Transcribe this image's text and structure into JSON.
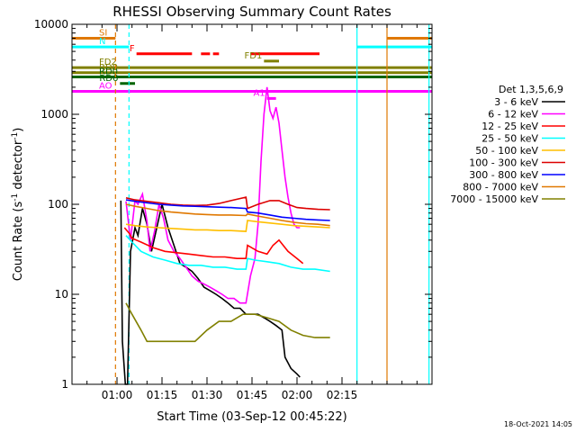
{
  "chart_data": {
    "type": "line",
    "title": "RHESSI Observing Summary Count Rates",
    "xlabel": "Start Time (03-Sep-12 00:45:22)",
    "ylabel_main": "Count Rate (s",
    "ylabel_sup1": "-1",
    "ylabel_mid": " detector",
    "ylabel_sup2": "-1",
    "ylabel_end": ")",
    "yscale": "log",
    "ylim": [
      1,
      10000
    ],
    "xlim_minutes": [
      -15,
      105
    ],
    "x_ticks": [
      {
        "m": 0,
        "label": "01:00"
      },
      {
        "m": 15,
        "label": "01:15"
      },
      {
        "m": 30,
        "label": "01:30"
      },
      {
        "m": 45,
        "label": "01:45"
      },
      {
        "m": 60,
        "label": "02:00"
      },
      {
        "m": 75,
        "label": "02:15"
      }
    ],
    "y_ticks": [
      {
        "v": 1,
        "label": "1"
      },
      {
        "v": 10,
        "label": "10"
      },
      {
        "v": 100,
        "label": "100"
      },
      {
        "v": 1000,
        "label": "1000"
      },
      {
        "v": 10000,
        "label": "10000"
      }
    ],
    "legend_title": "Det 1,3,5,6,9",
    "legend_position": "right",
    "series": [
      {
        "name": "3 - 6 keV",
        "color": "#000000",
        "points": [
          [
            1.3,
            110
          ],
          [
            1.8,
            3
          ],
          [
            2.8,
            1
          ],
          [
            3.5,
            1
          ],
          [
            4.5,
            30
          ],
          [
            6,
            55
          ],
          [
            7,
            45
          ],
          [
            8.5,
            90
          ],
          [
            10,
            60
          ],
          [
            11.5,
            30
          ],
          [
            13,
            50
          ],
          [
            15,
            100
          ],
          [
            17,
            55
          ],
          [
            19,
            35
          ],
          [
            21,
            22
          ],
          [
            23,
            20
          ],
          [
            25,
            18
          ],
          [
            27,
            15
          ],
          [
            29,
            12
          ],
          [
            31,
            11
          ],
          [
            33,
            10
          ],
          [
            35,
            9
          ],
          [
            37,
            8
          ],
          [
            39,
            7
          ],
          [
            41,
            7
          ],
          [
            43,
            6
          ],
          [
            45,
            6
          ],
          [
            47,
            6
          ],
          [
            49,
            5.5
          ],
          [
            51,
            5
          ],
          [
            53,
            4.5
          ],
          [
            55,
            4
          ],
          [
            56,
            2
          ],
          [
            58,
            1.5
          ],
          [
            60,
            1.3
          ],
          [
            61,
            1.2
          ]
        ]
      },
      {
        "name": "6 - 12 keV",
        "color": "#ff00ff",
        "points": [
          [
            3,
            108
          ],
          [
            4.5,
            40
          ],
          [
            6,
            110
          ],
          [
            7,
            100
          ],
          [
            8.5,
            130
          ],
          [
            10,
            65
          ],
          [
            11,
            30
          ],
          [
            12.5,
            50
          ],
          [
            14,
            100
          ],
          [
            15.5,
            70
          ],
          [
            17,
            40
          ],
          [
            19,
            30
          ],
          [
            21,
            25
          ],
          [
            23,
            20
          ],
          [
            25,
            16
          ],
          [
            27,
            14
          ],
          [
            29,
            13
          ],
          [
            31,
            12
          ],
          [
            33,
            11
          ],
          [
            35,
            10
          ],
          [
            37,
            9
          ],
          [
            39,
            9
          ],
          [
            41,
            8
          ],
          [
            43,
            8
          ],
          [
            44.5,
            16
          ],
          [
            46,
            25
          ],
          [
            47,
            60
          ],
          [
            48,
            300
          ],
          [
            49,
            1000
          ],
          [
            50,
            2000
          ],
          [
            51,
            1100
          ],
          [
            52,
            900
          ],
          [
            53,
            1200
          ],
          [
            54,
            800
          ],
          [
            55,
            400
          ],
          [
            56,
            200
          ],
          [
            57,
            120
          ],
          [
            58,
            80
          ],
          [
            59,
            60
          ],
          [
            60,
            55
          ],
          [
            61,
            55
          ]
        ]
      },
      {
        "name": "12 - 25 keV",
        "color": "#ff0000",
        "points": [
          [
            2.5,
            55
          ],
          [
            4,
            48
          ],
          [
            5,
            42
          ],
          [
            8,
            38
          ],
          [
            12,
            33
          ],
          [
            16,
            30
          ],
          [
            20,
            29
          ],
          [
            24,
            28
          ],
          [
            28,
            27
          ],
          [
            32,
            26
          ],
          [
            36,
            26
          ],
          [
            40,
            25
          ],
          [
            43,
            25
          ],
          [
            43.5,
            35
          ],
          [
            47,
            30
          ],
          [
            50,
            28
          ],
          [
            52,
            35
          ],
          [
            54,
            40
          ],
          [
            57,
            30
          ],
          [
            60,
            25
          ],
          [
            62,
            22
          ]
        ]
      },
      {
        "name": "25 - 50 keV",
        "color": "#00ffff",
        "points": [
          [
            3,
            45
          ],
          [
            5,
            38
          ],
          [
            8,
            30
          ],
          [
            12,
            26
          ],
          [
            16,
            24
          ],
          [
            20,
            22
          ],
          [
            24,
            21
          ],
          [
            28,
            21
          ],
          [
            32,
            20
          ],
          [
            36,
            20
          ],
          [
            40,
            19
          ],
          [
            43,
            19
          ],
          [
            43.5,
            25
          ],
          [
            46,
            24
          ],
          [
            50,
            23
          ],
          [
            54,
            22
          ],
          [
            58,
            20
          ],
          [
            62,
            19
          ],
          [
            66,
            19
          ],
          [
            71,
            18
          ]
        ]
      },
      {
        "name": "50 - 100 keV",
        "color": "#ffbf00",
        "points": [
          [
            3,
            60
          ],
          [
            6,
            58
          ],
          [
            10,
            56
          ],
          [
            14,
            55
          ],
          [
            18,
            54
          ],
          [
            22,
            53
          ],
          [
            26,
            52
          ],
          [
            30,
            52
          ],
          [
            34,
            51
          ],
          [
            38,
            51
          ],
          [
            43,
            50
          ],
          [
            43.5,
            66
          ],
          [
            47,
            64
          ],
          [
            51,
            62
          ],
          [
            55,
            60
          ],
          [
            59,
            58
          ],
          [
            63,
            57
          ],
          [
            67,
            56
          ],
          [
            71,
            55
          ]
        ]
      },
      {
        "name": "100 - 300 keV",
        "color": "#dd0000",
        "points": [
          [
            3,
            118
          ],
          [
            6,
            112
          ],
          [
            10,
            108
          ],
          [
            14,
            104
          ],
          [
            18,
            100
          ],
          [
            22,
            98
          ],
          [
            26,
            97
          ],
          [
            30,
            98
          ],
          [
            34,
            102
          ],
          [
            38,
            110
          ],
          [
            43,
            120
          ],
          [
            43.5,
            90
          ],
          [
            47,
            100
          ],
          [
            51,
            110
          ],
          [
            54,
            110
          ],
          [
            57,
            100
          ],
          [
            60,
            92
          ],
          [
            63,
            90
          ],
          [
            67,
            88
          ],
          [
            71,
            87
          ]
        ]
      },
      {
        "name": "300 - 800 keV",
        "color": "#0000ff",
        "points": [
          [
            3,
            112
          ],
          [
            6,
            108
          ],
          [
            10,
            104
          ],
          [
            14,
            100
          ],
          [
            18,
            98
          ],
          [
            22,
            96
          ],
          [
            26,
            95
          ],
          [
            30,
            94
          ],
          [
            34,
            93
          ],
          [
            38,
            92
          ],
          [
            43,
            90
          ],
          [
            43.5,
            82
          ],
          [
            47,
            80
          ],
          [
            51,
            76
          ],
          [
            55,
            72
          ],
          [
            59,
            70
          ],
          [
            63,
            68
          ],
          [
            67,
            67
          ],
          [
            71,
            66
          ]
        ]
      },
      {
        "name": "800 - 7000 keV",
        "color": "#e07800",
        "points": [
          [
            3,
            100
          ],
          [
            6,
            95
          ],
          [
            10,
            90
          ],
          [
            14,
            85
          ],
          [
            18,
            82
          ],
          [
            22,
            80
          ],
          [
            26,
            78
          ],
          [
            30,
            77
          ],
          [
            34,
            76
          ],
          [
            38,
            76
          ],
          [
            43,
            75
          ],
          [
            43.5,
            78
          ],
          [
            47,
            74
          ],
          [
            51,
            70
          ],
          [
            55,
            66
          ],
          [
            59,
            63
          ],
          [
            63,
            61
          ],
          [
            67,
            60
          ],
          [
            71,
            58
          ]
        ]
      },
      {
        "name": "7000 - 15000 keV",
        "color": "#808000",
        "points": [
          [
            3,
            8
          ],
          [
            5,
            6
          ],
          [
            8,
            4
          ],
          [
            10,
            3
          ],
          [
            14,
            3
          ],
          [
            18,
            3
          ],
          [
            22,
            3
          ],
          [
            26,
            3
          ],
          [
            30,
            4
          ],
          [
            34,
            5
          ],
          [
            38,
            5
          ],
          [
            42,
            6
          ],
          [
            43,
            6
          ],
          [
            46,
            6
          ],
          [
            50,
            5.5
          ],
          [
            54,
            5
          ],
          [
            58,
            4
          ],
          [
            62,
            3.5
          ],
          [
            66,
            3.3
          ],
          [
            71,
            3.3
          ]
        ]
      }
    ],
    "flag_bars": [
      {
        "label": "SI",
        "color": "#e07800",
        "y": 7000,
        "segments": [
          [
            -15,
            -0.5
          ],
          [
            90,
            105
          ]
        ]
      },
      {
        "label": "N",
        "color": "#00ffff",
        "y": 5600,
        "segments": [
          [
            -15,
            4
          ],
          [
            80,
            105
          ]
        ]
      },
      {
        "label": "F",
        "color": "#ff0000",
        "y": 4700,
        "segments": [
          [
            6.5,
            25
          ],
          [
            28,
            31
          ],
          [
            32,
            34
          ],
          [
            44.5,
            67.5
          ]
        ]
      },
      {
        "label": "FD1",
        "color": "#808000",
        "y": 3900,
        "segments": [
          [
            49,
            54
          ]
        ]
      },
      {
        "label": "FD2",
        "color": "#808000",
        "y": 3300,
        "segments": [
          [
            -15,
            105
          ]
        ]
      },
      {
        "label": "RD0",
        "color": "#808000",
        "y": 2900,
        "segments": [
          [
            -15,
            105
          ]
        ]
      },
      {
        "label": "RD0",
        "color": "#006400",
        "y": 2600,
        "segments": [
          [
            -15,
            105
          ]
        ]
      },
      {
        "label": "RD6",
        "color": "#006400",
        "y": 2200,
        "segments": [
          [
            1,
            6
          ]
        ]
      },
      {
        "label": "AO",
        "color": "#ff00ff",
        "y": 1800,
        "segments": [
          [
            -15,
            105
          ]
        ]
      },
      {
        "label": "A1",
        "color": "#ff00ff",
        "y": 1500,
        "segments": [
          [
            50,
            53
          ]
        ]
      }
    ],
    "vertical_lines": [
      {
        "m": -0.5,
        "color": "#e07800",
        "dash": true
      },
      {
        "m": 4,
        "color": "#00ffff",
        "dash": true
      },
      {
        "m": 80,
        "color": "#00ffff",
        "dash": false
      },
      {
        "m": 90,
        "color": "#e07800",
        "dash": false
      },
      {
        "m": 104,
        "color": "#00ffff",
        "dash": false
      }
    ],
    "footer": "18-Oct-2021 14:05"
  }
}
